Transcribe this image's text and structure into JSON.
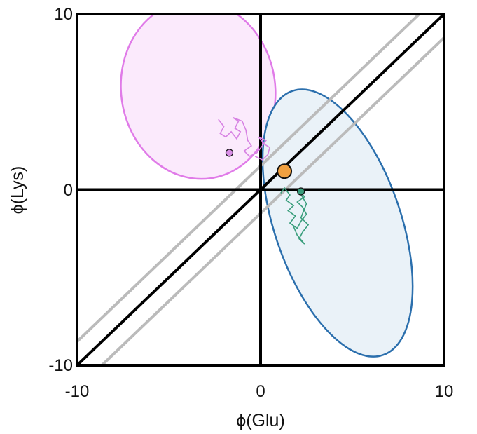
{
  "chart_data": {
    "type": "scatter",
    "title": "",
    "xlabel": "ϕ(Glu)",
    "ylabel": "ϕ(Lys)",
    "xlim": [
      -10,
      10
    ],
    "ylim": [
      -10,
      10
    ],
    "xticks": [
      "-10",
      "0",
      "10"
    ],
    "yticks": [
      "-10",
      "0",
      "10"
    ],
    "grid": false,
    "legend": "none",
    "reference_lines": [
      {
        "kind": "diagonal",
        "slope": 1,
        "intercept": 0,
        "color": "#000000"
      },
      {
        "kind": "offset",
        "slope": 1,
        "intercept": 1.35,
        "color": "#bbbbbb"
      },
      {
        "kind": "offset",
        "slope": 1,
        "intercept": -1.35,
        "color": "#bbbbbb"
      },
      {
        "kind": "zero-x",
        "color": "#000000"
      },
      {
        "kind": "zero-y",
        "color": "#000000"
      }
    ],
    "ellipses": [
      {
        "cx": -3.4,
        "cy": 5.7,
        "rx": 4.2,
        "ry": 5.1,
        "angle_deg": -8,
        "stroke": "#e07be8",
        "fill": "#fbeafc"
      },
      {
        "cx": 4.2,
        "cy": -1.9,
        "rx": 7.6,
        "ry": 3.6,
        "angle_deg": -109,
        "stroke": "#2b6fad",
        "fill": "#eaf2f8"
      }
    ],
    "trajectories": [
      {
        "color": "#d782e3",
        "points": [
          [
            -2.3,
            4.0
          ],
          [
            -2.0,
            3.6
          ],
          [
            -2.2,
            3.2
          ],
          [
            -1.9,
            3.0
          ],
          [
            -1.6,
            3.3
          ],
          [
            -1.3,
            2.9
          ],
          [
            -1.1,
            3.3
          ],
          [
            -1.4,
            3.5
          ],
          [
            -1.2,
            3.9
          ],
          [
            -1.5,
            4.1
          ],
          [
            -1.0,
            3.9
          ],
          [
            -0.8,
            3.4
          ],
          [
            -0.7,
            2.8
          ],
          [
            -0.5,
            2.5
          ],
          [
            -0.9,
            2.2
          ],
          [
            -0.6,
            1.9
          ],
          [
            -0.2,
            2.1
          ],
          [
            0.1,
            2.5
          ],
          [
            0.3,
            2.8
          ],
          [
            -0.1,
            3.0
          ],
          [
            0.2,
            2.6
          ],
          [
            0.5,
            2.4
          ],
          [
            0.4,
            2.0
          ],
          [
            0.1,
            1.7
          ],
          [
            -0.3,
            1.9
          ]
        ]
      },
      {
        "color": "#3a9e7c",
        "points": [
          [
            1.1,
            -0.2
          ],
          [
            1.3,
            0.1
          ],
          [
            1.6,
            -0.3
          ],
          [
            1.4,
            -0.6
          ],
          [
            1.8,
            -0.9
          ],
          [
            1.5,
            -1.2
          ],
          [
            1.9,
            -1.5
          ],
          [
            1.6,
            -1.9
          ],
          [
            2.0,
            -2.2
          ],
          [
            2.2,
            -1.8
          ],
          [
            2.5,
            -1.4
          ],
          [
            2.3,
            -1.0
          ],
          [
            2.0,
            -0.7
          ],
          [
            2.4,
            -0.4
          ],
          [
            2.1,
            -0.1
          ],
          [
            2.5,
            -0.8
          ],
          [
            2.2,
            -1.6
          ],
          [
            2.6,
            -2.0
          ],
          [
            2.3,
            -2.4
          ],
          [
            2.1,
            -2.8
          ],
          [
            2.4,
            -3.1
          ],
          [
            2.0,
            -2.6
          ],
          [
            1.8,
            -2.1
          ]
        ]
      }
    ],
    "series": [
      {
        "marker": "small-circle",
        "color": "#d98ee6",
        "x": [
          -1.7
        ],
        "y": [
          2.1
        ]
      },
      {
        "marker": "small-circle",
        "color": "#3a9e7c",
        "x": [
          2.2
        ],
        "y": [
          -0.1
        ]
      },
      {
        "marker": "large-circle",
        "color": "#f0a040",
        "x": [
          1.3
        ],
        "y": [
          1.05
        ]
      }
    ]
  }
}
